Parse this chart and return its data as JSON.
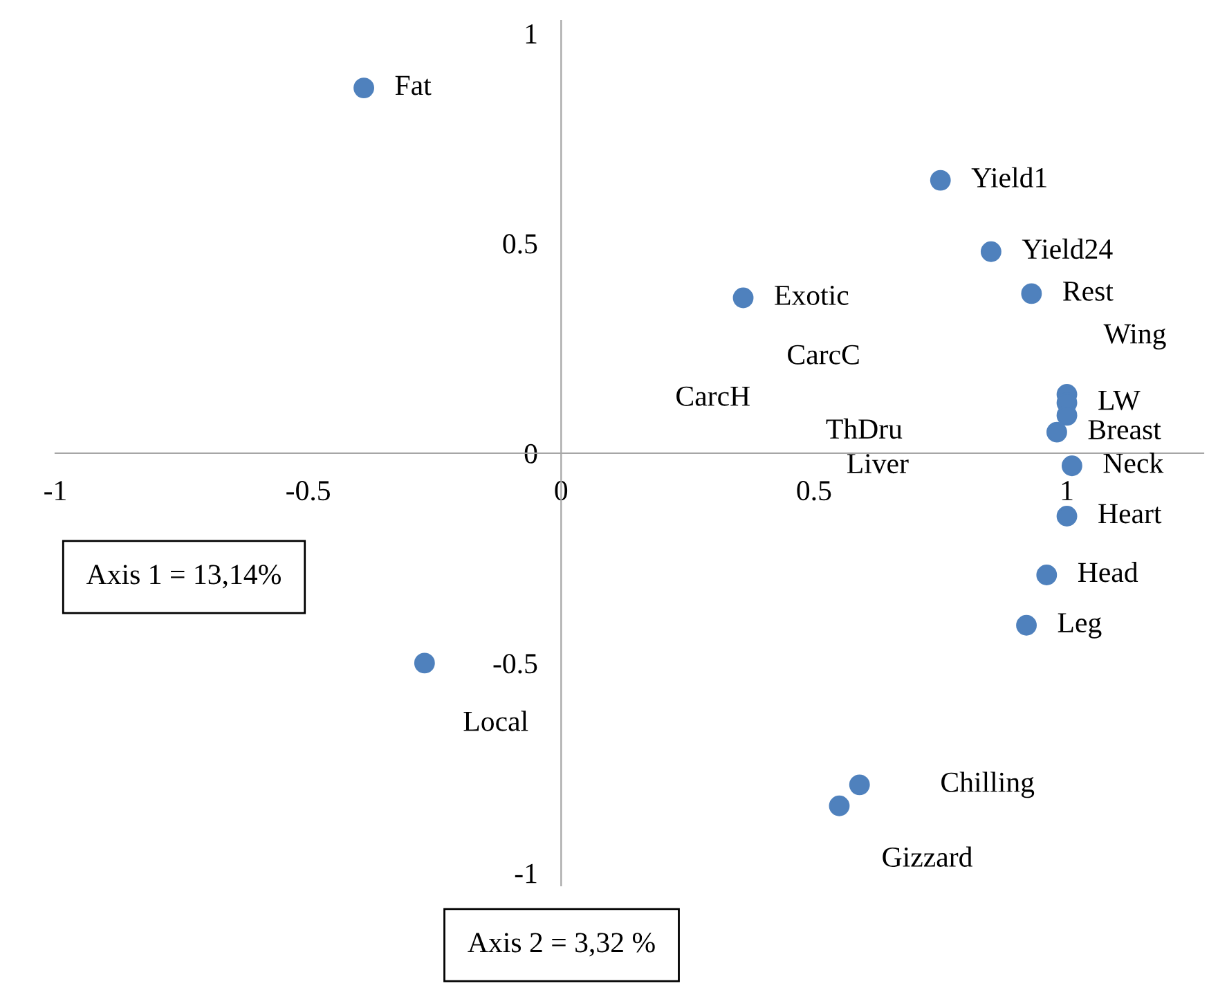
{
  "chart_data": {
    "type": "scatter",
    "xlim": [
      -1,
      1.27
    ],
    "ylim": [
      -1.03,
      1.03
    ],
    "xticks": [
      -1,
      -0.5,
      0,
      0.5,
      1
    ],
    "yticks": [
      -1,
      -0.5,
      0,
      0.5,
      1
    ],
    "grid": false,
    "marker": "circle",
    "series": [
      {
        "color": "#4f81bd",
        "x": [
          -0.39,
          0.75,
          0.85,
          0.93,
          0.36,
          1.0,
          1.0,
          1.0,
          0.98,
          1.01,
          1.0,
          0.96,
          0.92,
          -0.27,
          0.59,
          0.55
        ],
        "values": [
          0.87,
          0.65,
          0.48,
          0.38,
          0.37,
          0.14,
          0.12,
          0.09,
          0.05,
          -0.03,
          -0.15,
          -0.29,
          -0.41,
          -0.5,
          -0.79,
          -0.84
        ]
      }
    ],
    "annotations": [
      {
        "text": "Fat",
        "x": -0.39,
        "y": 0.87
      },
      {
        "text": "Yield1",
        "x": 0.75,
        "y": 0.65
      },
      {
        "text": "Yield24",
        "x": 0.85,
        "y": 0.48
      },
      {
        "text": "Rest",
        "x": 0.93,
        "y": 0.38
      },
      {
        "text": "LW",
        "x": 1.0,
        "y": 0.12
      },
      {
        "text": "Breast",
        "x": 0.98,
        "y": 0.05
      },
      {
        "text": "Neck",
        "x": 1.01,
        "y": -0.03
      },
      {
        "text": "Heart",
        "x": 1.0,
        "y": -0.15
      },
      {
        "text": "Head",
        "x": 0.96,
        "y": -0.29
      },
      {
        "text": "Leg",
        "x": 0.92,
        "y": -0.41
      },
      {
        "text": "Exotic",
        "x": 0.36,
        "y": 0.37
      },
      {
        "text": "Chilling",
        "x": 0.59,
        "y": -0.79
      },
      {
        "text": "Gizzard",
        "x": 0.55,
        "y": -0.84
      },
      "Wing",
      "CarcC",
      "CarcH",
      "ThDru",
      "Liver",
      "Local",
      "Axis 1 = 13,14%",
      "Axis 2 = 3,32 %"
    ]
  }
}
